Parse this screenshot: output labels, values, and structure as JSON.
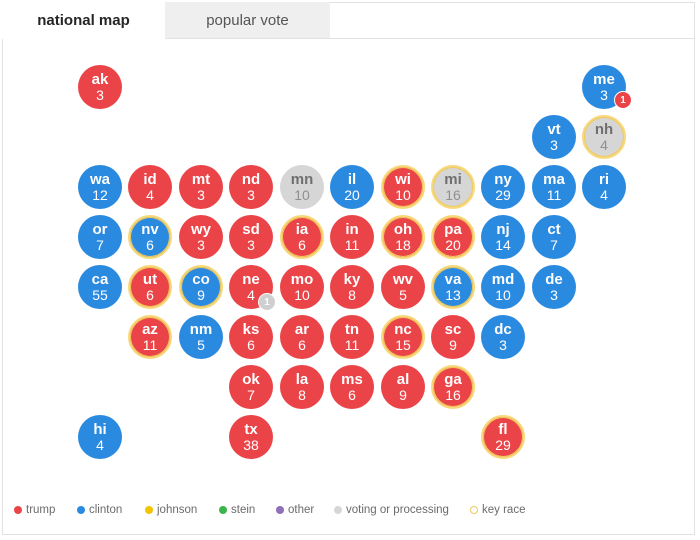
{
  "tabs": [
    {
      "label": "national map",
      "active": true
    },
    {
      "label": "popular vote",
      "active": false
    }
  ],
  "colors": {
    "trump": "#ea4448",
    "clinton": "#2a8ae0",
    "johnson": "#f2c500",
    "stein": "#3bb54a",
    "other": "#8e6fb8",
    "voting": "#d6d6d6",
    "key_race": "#f2c85a"
  },
  "states": [
    {
      "abbr": "ak",
      "ev": "3",
      "party": "trump",
      "key": false
    },
    {
      "abbr": "me",
      "ev": "3",
      "party": "clinton",
      "key": false
    },
    {
      "abbr": "vt",
      "ev": "3",
      "party": "clinton",
      "key": false
    },
    {
      "abbr": "nh",
      "ev": "4",
      "party": "voting",
      "key": true
    },
    {
      "abbr": "wa",
      "ev": "12",
      "party": "clinton",
      "key": false
    },
    {
      "abbr": "id",
      "ev": "4",
      "party": "trump",
      "key": false
    },
    {
      "abbr": "mt",
      "ev": "3",
      "party": "trump",
      "key": false
    },
    {
      "abbr": "nd",
      "ev": "3",
      "party": "trump",
      "key": false
    },
    {
      "abbr": "mn",
      "ev": "10",
      "party": "voting",
      "key": false
    },
    {
      "abbr": "il",
      "ev": "20",
      "party": "clinton",
      "key": false
    },
    {
      "abbr": "wi",
      "ev": "10",
      "party": "trump",
      "key": true
    },
    {
      "abbr": "mi",
      "ev": "16",
      "party": "voting",
      "key": true
    },
    {
      "abbr": "ny",
      "ev": "29",
      "party": "clinton",
      "key": false
    },
    {
      "abbr": "ma",
      "ev": "11",
      "party": "clinton",
      "key": false
    },
    {
      "abbr": "ri",
      "ev": "4",
      "party": "clinton",
      "key": false
    },
    {
      "abbr": "or",
      "ev": "7",
      "party": "clinton",
      "key": false
    },
    {
      "abbr": "nv",
      "ev": "6",
      "party": "clinton",
      "key": true
    },
    {
      "abbr": "wy",
      "ev": "3",
      "party": "trump",
      "key": false
    },
    {
      "abbr": "sd",
      "ev": "3",
      "party": "trump",
      "key": false
    },
    {
      "abbr": "ia",
      "ev": "6",
      "party": "trump",
      "key": true
    },
    {
      "abbr": "in",
      "ev": "11",
      "party": "trump",
      "key": false
    },
    {
      "abbr": "oh",
      "ev": "18",
      "party": "trump",
      "key": true
    },
    {
      "abbr": "pa",
      "ev": "20",
      "party": "trump",
      "key": true
    },
    {
      "abbr": "nj",
      "ev": "14",
      "party": "clinton",
      "key": false
    },
    {
      "abbr": "ct",
      "ev": "7",
      "party": "clinton",
      "key": false
    },
    {
      "abbr": "ca",
      "ev": "55",
      "party": "clinton",
      "key": false
    },
    {
      "abbr": "ut",
      "ev": "6",
      "party": "trump",
      "key": true
    },
    {
      "abbr": "co",
      "ev": "9",
      "party": "clinton",
      "key": true
    },
    {
      "abbr": "ne",
      "ev": "4",
      "party": "trump",
      "key": false
    },
    {
      "abbr": "mo",
      "ev": "10",
      "party": "trump",
      "key": false
    },
    {
      "abbr": "ky",
      "ev": "8",
      "party": "trump",
      "key": false
    },
    {
      "abbr": "wv",
      "ev": "5",
      "party": "trump",
      "key": false
    },
    {
      "abbr": "va",
      "ev": "13",
      "party": "clinton",
      "key": true
    },
    {
      "abbr": "md",
      "ev": "10",
      "party": "clinton",
      "key": false
    },
    {
      "abbr": "de",
      "ev": "3",
      "party": "clinton",
      "key": false
    },
    {
      "abbr": "az",
      "ev": "11",
      "party": "trump",
      "key": true
    },
    {
      "abbr": "nm",
      "ev": "5",
      "party": "clinton",
      "key": false
    },
    {
      "abbr": "ks",
      "ev": "6",
      "party": "trump",
      "key": false
    },
    {
      "abbr": "ar",
      "ev": "6",
      "party": "trump",
      "key": false
    },
    {
      "abbr": "tn",
      "ev": "11",
      "party": "trump",
      "key": false
    },
    {
      "abbr": "nc",
      "ev": "15",
      "party": "trump",
      "key": true
    },
    {
      "abbr": "sc",
      "ev": "9",
      "party": "trump",
      "key": false
    },
    {
      "abbr": "dc",
      "ev": "3",
      "party": "clinton",
      "key": false
    },
    {
      "abbr": "ok",
      "ev": "7",
      "party": "trump",
      "key": false
    },
    {
      "abbr": "la",
      "ev": "8",
      "party": "trump",
      "key": false
    },
    {
      "abbr": "ms",
      "ev": "6",
      "party": "trump",
      "key": false
    },
    {
      "abbr": "al",
      "ev": "9",
      "party": "trump",
      "key": false
    },
    {
      "abbr": "ga",
      "ev": "16",
      "party": "trump",
      "key": true
    },
    {
      "abbr": "hi",
      "ev": "4",
      "party": "clinton",
      "key": false
    },
    {
      "abbr": "tx",
      "ev": "38",
      "party": "trump",
      "key": false
    },
    {
      "abbr": "fl",
      "ev": "29",
      "party": "trump",
      "key": true
    }
  ],
  "badges": [
    {
      "state": "me",
      "value": "1",
      "party": "trump"
    },
    {
      "state": "ne",
      "value": "1",
      "party": "voting"
    }
  ],
  "legend": [
    {
      "label": "trump",
      "key": "trump"
    },
    {
      "label": "clinton",
      "key": "clinton"
    },
    {
      "label": "johnson",
      "key": "johnson"
    },
    {
      "label": "stein",
      "key": "stein"
    },
    {
      "label": "other",
      "key": "other"
    },
    {
      "label": "voting or processing",
      "key": "voting"
    },
    {
      "label": "key race",
      "key": "key_race"
    }
  ]
}
